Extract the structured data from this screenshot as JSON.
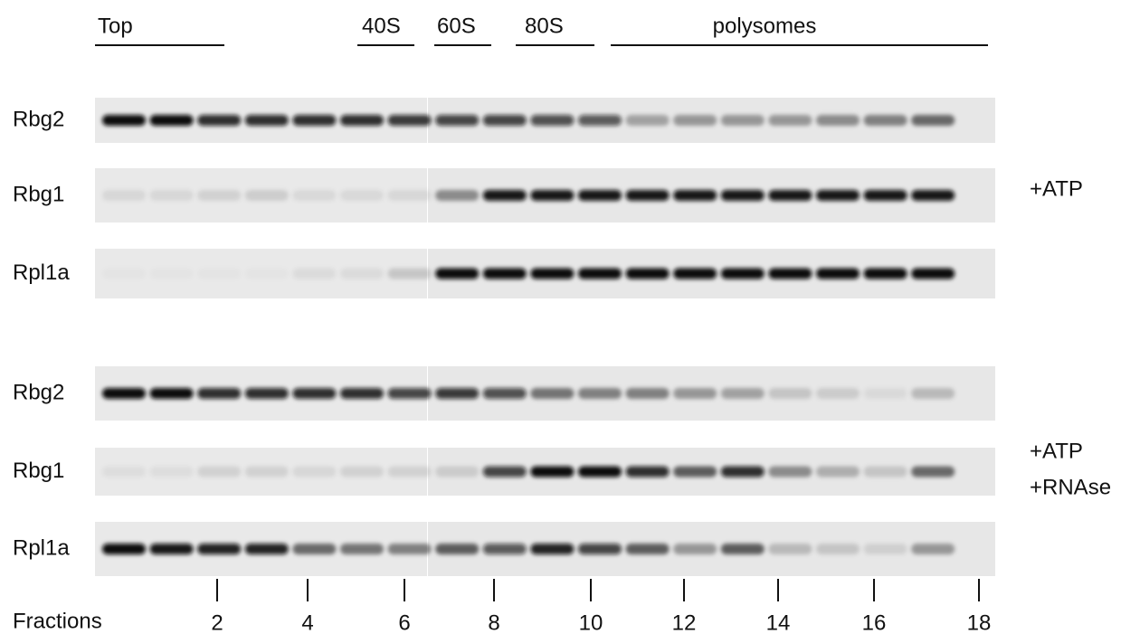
{
  "header": {
    "labels": [
      "Top",
      "40S",
      "60S",
      "80S",
      "polysomes"
    ]
  },
  "panels": [
    {
      "condition": [
        "+ATP"
      ],
      "rows": [
        "Rbg2",
        "Rbg1",
        "Rpl1a"
      ]
    },
    {
      "condition": [
        "+ATP",
        "+RNAse"
      ],
      "rows": [
        "Rbg2",
        "Rbg1",
        "Rpl1a"
      ]
    }
  ],
  "fractions": {
    "label": "Fractions",
    "ticks": [
      2,
      4,
      6,
      8,
      10,
      12,
      14,
      16,
      18
    ]
  }
}
